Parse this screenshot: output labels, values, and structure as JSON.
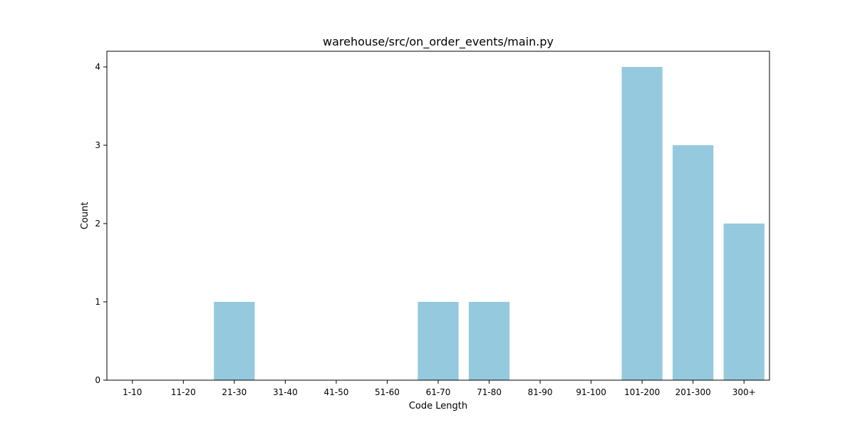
{
  "chart_data": {
    "type": "bar",
    "title": "warehouse/src/on_order_events/main.py",
    "xlabel": "Code Length",
    "ylabel": "Count",
    "categories": [
      "1-10",
      "11-20",
      "21-30",
      "31-40",
      "41-50",
      "51-60",
      "61-70",
      "71-80",
      "81-90",
      "91-100",
      "101-200",
      "201-300",
      "300+"
    ],
    "values": [
      0,
      0,
      1,
      0,
      0,
      0,
      1,
      1,
      0,
      0,
      4,
      3,
      2
    ],
    "ylim": [
      0,
      4.2
    ],
    "yticks": [
      "0",
      "1",
      "2",
      "3",
      "4"
    ],
    "grid": false,
    "bar_color": "#95c9de"
  }
}
